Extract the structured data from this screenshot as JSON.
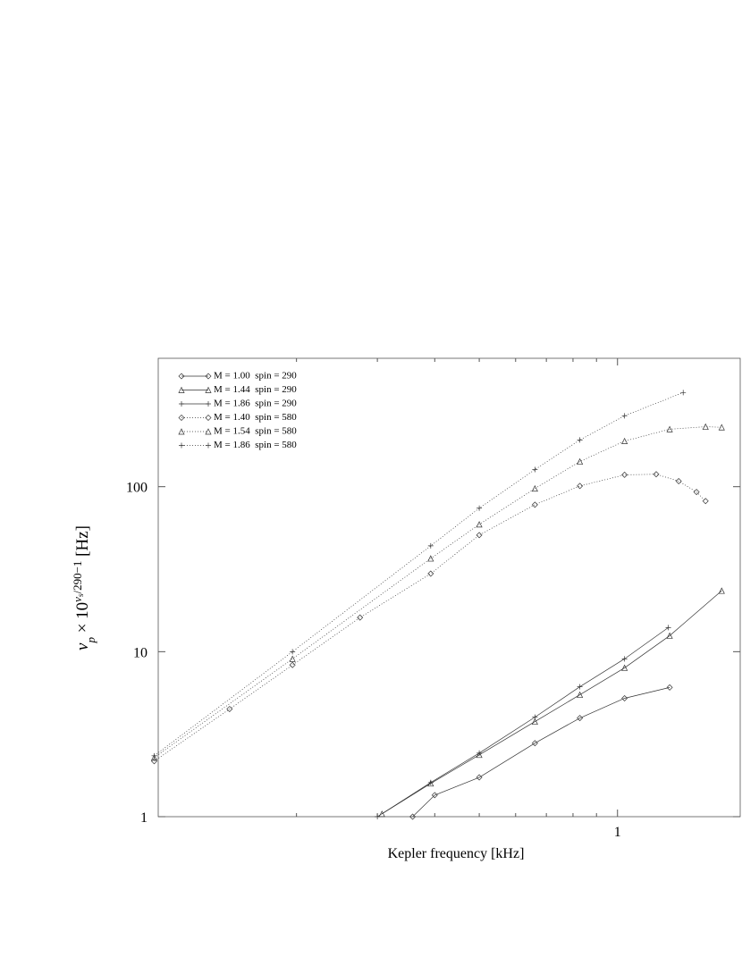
{
  "chart_data": {
    "type": "line",
    "xlabel": "Kepler frequency [kHz]",
    "ylabel_parts": [
      "ν",
      "p",
      " × 10",
      "ν",
      "s",
      "/290−1",
      " [Hz]"
    ],
    "xscale": "log",
    "yscale": "log",
    "xlim": [
      0.1,
      1.85
    ],
    "ylim": [
      1,
      600
    ],
    "xticks": [
      1
    ],
    "yticks": [
      1,
      10,
      100
    ],
    "x_minor_ticks": [
      0.2,
      0.3,
      0.4,
      0.5,
      0.6,
      0.7,
      0.8,
      0.9
    ],
    "legend": "upper left",
    "series": [
      {
        "name": "M = 1.00  spin = 290",
        "color": "#333333",
        "marker": "diamond",
        "dash": "solid",
        "x": [
          0.358,
          0.4,
          0.5,
          0.661,
          0.828,
          1.036,
          1.299
        ],
        "values": [
          1,
          1.35,
          1.73,
          2.79,
          3.96,
          5.22,
          6.07
        ]
      },
      {
        "name": "M = 1.44  spin = 290",
        "color": "#333333",
        "marker": "triangle",
        "dash": "solid",
        "x": [
          0.307,
          0.392,
          0.5,
          0.661,
          0.828,
          1.036,
          1.299,
          1.686
        ],
        "values": [
          1.04,
          1.59,
          2.37,
          3.77,
          5.48,
          7.98,
          12.5,
          23.4
        ]
      },
      {
        "name": "M = 1.86  spin = 290",
        "color": "#333333",
        "marker": "plus",
        "dash": "solid",
        "x": [
          0.3,
          0.392,
          0.5,
          0.661,
          0.828,
          1.036,
          1.29
        ],
        "values": [
          1,
          1.61,
          2.43,
          4.01,
          6.13,
          9.05,
          14
        ]
      },
      {
        "name": "M = 1.40  spin = 580",
        "color": "#333333",
        "marker": "diamond",
        "dash": "dotted",
        "x": [
          0.098,
          0.143,
          0.196,
          0.275,
          0.392,
          0.5,
          0.661,
          0.828,
          1.036,
          1.214,
          1.359,
          1.486,
          1.555
        ],
        "values": [
          2.17,
          4.49,
          8.3,
          16.1,
          29.7,
          50.9,
          77.8,
          101,
          118,
          119,
          108,
          92.8,
          81.8
        ]
      },
      {
        "name": "M = 1.54  spin = 580",
        "color": "#333333",
        "marker": "triangle",
        "dash": "dotted",
        "x": [
          0.098,
          0.196,
          0.392,
          0.5,
          0.661,
          0.828,
          1.036,
          1.299,
          1.555,
          1.686
        ],
        "values": [
          2.28,
          9.05,
          36.7,
          59.1,
          97.5,
          142,
          189,
          223,
          231,
          229
        ]
      },
      {
        "name": "M = 1.86  spin = 580",
        "color": "#333333",
        "marker": "plus",
        "dash": "dotted",
        "x": [
          0.098,
          0.196,
          0.392,
          0.5,
          0.661,
          0.828,
          1.036,
          1.39
        ],
        "values": [
          2.34,
          10.0,
          43.8,
          74.1,
          127,
          192,
          269,
          372
        ]
      }
    ]
  }
}
